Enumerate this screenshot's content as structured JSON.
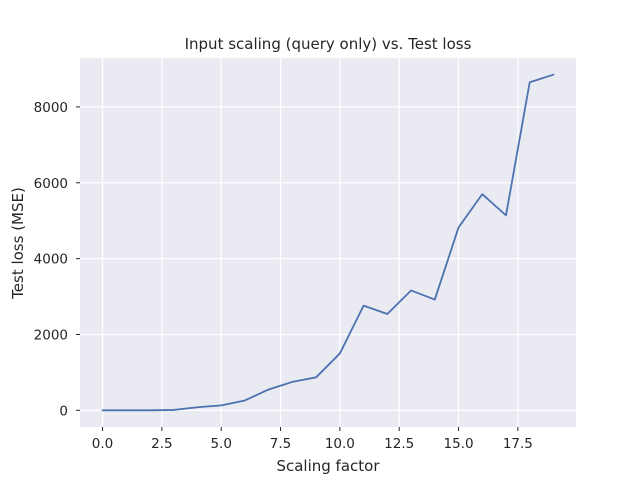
{
  "chart_data": {
    "type": "line",
    "title": "Input scaling (query only) vs. Test loss",
    "xlabel": "Scaling factor",
    "ylabel": "Test loss (MSE)",
    "xlim": [
      -0.95,
      19.95
    ],
    "ylim": [
      -440,
      9290
    ],
    "xticks": [
      0.0,
      2.5,
      5.0,
      7.5,
      10.0,
      12.5,
      15.0,
      17.5
    ],
    "xtick_labels": [
      "0.0",
      "2.5",
      "5.0",
      "7.5",
      "10.0",
      "12.5",
      "15.0",
      "17.5"
    ],
    "yticks": [
      0,
      2000,
      4000,
      6000,
      8000
    ],
    "ytick_labels": [
      "0",
      "2000",
      "4000",
      "6000",
      "8000"
    ],
    "grid": true,
    "background": "#eaeaf2",
    "grid_color": "#ffffff",
    "line_color": "#4c72b0",
    "series": [
      {
        "x": [
          0,
          1,
          2,
          3,
          4,
          5,
          6,
          7,
          8,
          9,
          10,
          11,
          12,
          13,
          14,
          15,
          16,
          17,
          18,
          19
        ],
        "values": [
          0,
          0,
          0,
          10,
          80,
          130,
          260,
          550,
          750,
          870,
          1500,
          2760,
          2540,
          3160,
          2920,
          4820,
          5700,
          5140,
          8650,
          8850
        ]
      }
    ]
  }
}
